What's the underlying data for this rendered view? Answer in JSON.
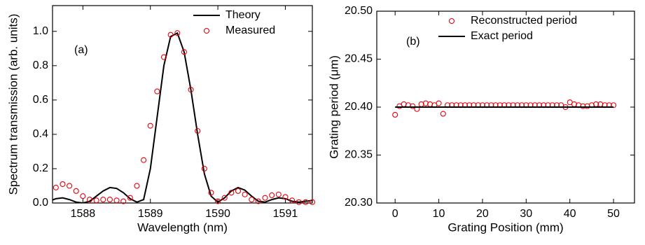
{
  "chart_data": [
    {
      "type": "line",
      "annotation": "(a)",
      "x_label": "Wavelength (nm)",
      "y_label": "Spectrum transmission (arb. units)",
      "xlim": [
        1587.55,
        1591.4
      ],
      "ylim": [
        0,
        1.15
      ],
      "xticks": [
        1588,
        1589,
        1590,
        1591
      ],
      "yticks": [
        {
          "value": 0,
          "label": "0.0"
        },
        0.2,
        0.4,
        0.6,
        0.8,
        {
          "value": 1,
          "label": "1.0"
        }
      ],
      "legend": "upper right",
      "series": [
        {
          "name": "Theory",
          "color": "#000000",
          "style": "line",
          "x": [
            1587.5,
            1587.6,
            1587.7,
            1587.8,
            1587.9,
            1588.0,
            1588.1,
            1588.2,
            1588.3,
            1588.4,
            1588.5,
            1588.6,
            1588.7,
            1588.8,
            1588.9,
            1589.0,
            1589.1,
            1589.2,
            1589.3,
            1589.4,
            1589.5,
            1589.6,
            1589.7,
            1589.8,
            1589.9,
            1590.0,
            1590.1,
            1590.2,
            1590.3,
            1590.4,
            1590.5,
            1590.6,
            1590.7,
            1590.8,
            1590.9,
            1591.0,
            1591.1,
            1591.2,
            1591.3,
            1591.4,
            1591.5
          ],
          "values": [
            0.01,
            0.025,
            0.03,
            0.02,
            0.005,
            0.0,
            0.01,
            0.04,
            0.07,
            0.09,
            0.085,
            0.06,
            0.025,
            0.005,
            0.02,
            0.2,
            0.5,
            0.8,
            0.97,
            0.99,
            0.88,
            0.66,
            0.4,
            0.17,
            0.04,
            0.005,
            0.03,
            0.07,
            0.09,
            0.075,
            0.04,
            0.01,
            0.005,
            0.02,
            0.03,
            0.025,
            0.01,
            0.005,
            0.01,
            0.015,
            0.01
          ]
        },
        {
          "name": "Measured",
          "color": "#e8000b",
          "style": "markers",
          "x": [
            1587.5,
            1587.6,
            1587.7,
            1587.8,
            1587.9,
            1588.0,
            1588.1,
            1588.2,
            1588.3,
            1588.4,
            1588.5,
            1588.6,
            1588.7,
            1588.8,
            1588.9,
            1589.0,
            1589.1,
            1589.2,
            1589.3,
            1589.4,
            1589.5,
            1589.6,
            1589.7,
            1589.8,
            1589.9,
            1590.0,
            1590.1,
            1590.2,
            1590.3,
            1590.4,
            1590.5,
            1590.6,
            1590.7,
            1590.8,
            1590.9,
            1591.0,
            1591.1,
            1591.2,
            1591.3,
            1591.4,
            1591.5
          ],
          "values": [
            0.06,
            0.09,
            0.11,
            0.1,
            0.07,
            0.04,
            0.02,
            0.015,
            0.02,
            0.02,
            0.015,
            0.01,
            0.03,
            0.1,
            0.25,
            0.45,
            0.65,
            0.85,
            0.98,
            0.99,
            0.88,
            0.66,
            0.42,
            0.2,
            0.06,
            0.01,
            0.03,
            0.06,
            0.07,
            0.05,
            0.02,
            0.01,
            0.03,
            0.045,
            0.05,
            0.035,
            0.015,
            0.005,
            0.005,
            0.005,
            0.005
          ]
        }
      ]
    },
    {
      "type": "line",
      "annotation": "(b)",
      "x_label": "Grating Position (mm)",
      "y_label": "Grating period (μm)",
      "xlim": [
        -4.2,
        54.8
      ],
      "ylim": [
        20.3,
        20.5
      ],
      "xticks": [
        0,
        10,
        20,
        30,
        40,
        50
      ],
      "yticks": [
        {
          "value": 20.3,
          "label": "20.30"
        },
        20.35,
        {
          "value": 20.4,
          "label": "20.40"
        },
        20.45,
        {
          "value": 20.5,
          "label": "20.50"
        }
      ],
      "legend": "upper center",
      "series": [
        {
          "name": "Reconstructed period",
          "color": "#e8000b",
          "style": "markers",
          "x": [
            0,
            1,
            2,
            3,
            4,
            5,
            6,
            7,
            8,
            9,
            10,
            11,
            12,
            13,
            14,
            15,
            16,
            17,
            18,
            19,
            20,
            21,
            22,
            23,
            24,
            25,
            26,
            27,
            28,
            29,
            30,
            31,
            32,
            33,
            34,
            35,
            36,
            37,
            38,
            39,
            40,
            41,
            42,
            43,
            44,
            45,
            46,
            47,
            48,
            49,
            50
          ],
          "values": [
            20.392,
            20.401,
            20.403,
            20.402,
            20.401,
            20.398,
            20.403,
            20.404,
            20.403,
            20.402,
            20.404,
            20.393,
            20.402,
            20.402,
            20.402,
            20.402,
            20.402,
            20.402,
            20.402,
            20.402,
            20.402,
            20.402,
            20.402,
            20.402,
            20.402,
            20.402,
            20.402,
            20.402,
            20.402,
            20.402,
            20.402,
            20.402,
            20.402,
            20.402,
            20.402,
            20.402,
            20.402,
            20.402,
            20.402,
            20.4,
            20.405,
            20.403,
            20.402,
            20.401,
            20.401,
            20.402,
            20.403,
            20.403,
            20.402,
            20.402,
            20.402
          ]
        },
        {
          "name": "Exact period",
          "color": "#000000",
          "style": "line",
          "x": [
            0,
            50
          ],
          "values": [
            20.4,
            20.4
          ]
        }
      ]
    }
  ]
}
